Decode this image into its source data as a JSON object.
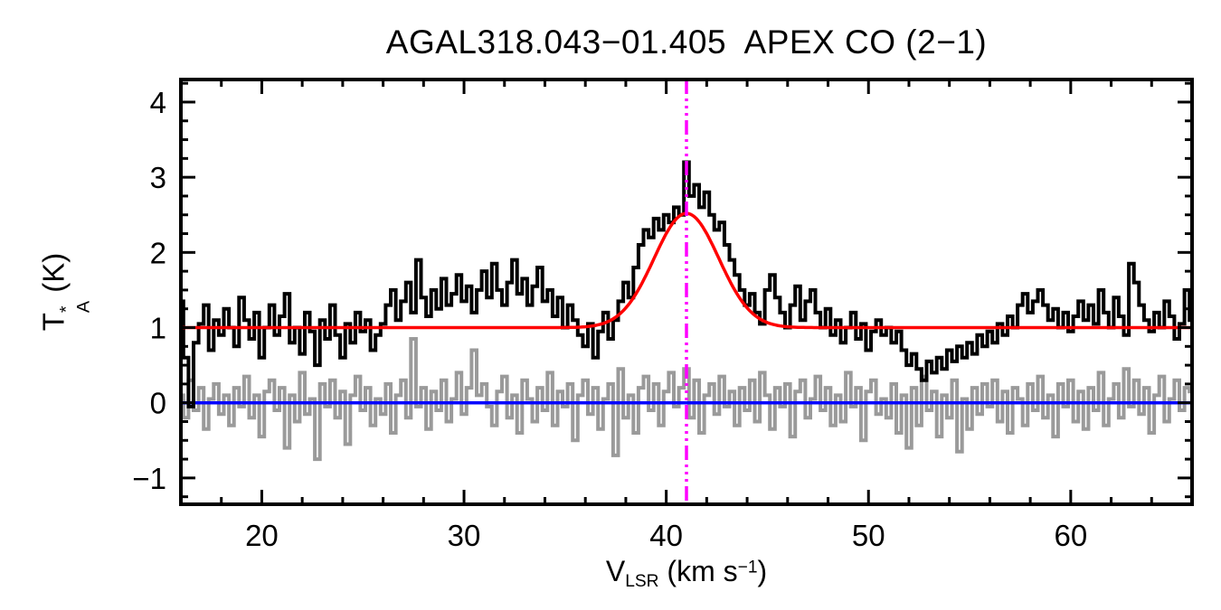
{
  "title": "AGAL318.043−01.405  APEX CO (2−1)",
  "labels": {
    "x": {
      "prefix": "V",
      "sub": "LSR",
      "mid": " (km s",
      "sup": "−1",
      "suffix": ")"
    },
    "y": {
      "prefix": "T",
      "sup": "*",
      "sub": "A",
      "suffix": " (K)"
    }
  },
  "chart_data": {
    "type": "line",
    "title": "AGAL318.043−01.405  APEX CO (2−1)",
    "xlabel": "V_LSR (km s^-1)",
    "ylabel": "T*_A (K)",
    "xlim": [
      16,
      66
    ],
    "ylim": [
      -1.35,
      4.3
    ],
    "xticks": [
      20,
      30,
      40,
      50,
      60
    ],
    "yticks": [
      -1,
      0,
      1,
      2,
      3,
      4
    ],
    "xtick_labels": [
      "20",
      "30",
      "40",
      "50",
      "60"
    ],
    "ytick_labels": [
      "−1",
      "0",
      "1",
      "2",
      "3",
      "4"
    ],
    "x_minor_step": 2,
    "y_minor_step": 0.25,
    "grid": false,
    "legend": "none",
    "x_start": 16.0,
    "x_step": 0.25,
    "series": [
      {
        "name": "co_spectrum",
        "style": "histogram",
        "color": "#000000",
        "width": 4,
        "values": [
          1.35,
          0.6,
          -0.05,
          0.8,
          1.05,
          1.3,
          0.7,
          1.1,
          0.9,
          1.25,
          1.0,
          0.75,
          1.4,
          1.1,
          0.85,
          1.2,
          0.6,
          1.0,
          1.3,
          0.9,
          1.15,
          1.45,
          0.8,
          1.0,
          0.65,
          1.2,
          0.95,
          0.5,
          1.1,
          0.85,
          1.3,
          0.9,
          0.6,
          1.05,
          0.8,
          1.2,
          0.95,
          1.1,
          0.7,
          0.9,
          1.05,
          1.3,
          1.5,
          1.1,
          1.35,
          1.6,
          1.2,
          1.9,
          1.4,
          1.15,
          1.5,
          1.25,
          1.65,
          1.3,
          1.45,
          1.7,
          1.35,
          1.55,
          1.2,
          1.5,
          1.75,
          1.4,
          1.85,
          1.5,
          1.3,
          1.6,
          1.9,
          1.45,
          1.65,
          1.3,
          1.55,
          1.8,
          1.35,
          1.5,
          1.15,
          1.4,
          1.0,
          1.3,
          1.1,
          0.9,
          0.75,
          1.05,
          0.6,
          0.95,
          1.2,
          0.85,
          1.1,
          1.35,
          1.6,
          1.4,
          1.8,
          2.1,
          2.3,
          2.2,
          2.45,
          2.3,
          2.5,
          2.4,
          2.6,
          2.5,
          3.2,
          2.75,
          2.9,
          2.6,
          2.8,
          2.5,
          2.3,
          2.4,
          2.1,
          1.9,
          1.7,
          1.5,
          1.3,
          1.45,
          1.2,
          1.05,
          1.5,
          1.7,
          1.4,
          1.2,
          1.0,
          1.3,
          1.55,
          1.1,
          1.35,
          1.5,
          1.2,
          1.0,
          1.25,
          0.9,
          1.1,
          0.8,
          1.0,
          1.2,
          0.85,
          1.05,
          0.7,
          0.95,
          1.1,
          0.9,
          1.0,
          0.8,
          0.95,
          0.7,
          0.5,
          0.65,
          0.45,
          0.3,
          0.55,
          0.4,
          0.6,
          0.45,
          0.7,
          0.55,
          0.75,
          0.6,
          0.8,
          0.65,
          0.9,
          0.75,
          0.95,
          0.8,
          1.05,
          0.9,
          1.15,
          1.0,
          1.3,
          1.45,
          1.2,
          1.35,
          1.5,
          1.3,
          1.1,
          1.25,
          1.0,
          1.2,
          0.95,
          1.15,
          1.35,
          1.1,
          1.3,
          1.05,
          1.5,
          1.2,
          1.0,
          1.4,
          1.15,
          0.9,
          1.85,
          1.6,
          1.3,
          1.1,
          0.95,
          1.2,
          1.0,
          1.35,
          1.15,
          0.85,
          1.05,
          1.5,
          1.1
        ]
      },
      {
        "name": "residual_spectrum",
        "style": "histogram",
        "color": "#9a9a9a",
        "width": 4,
        "values": [
          0.1,
          -0.2,
          0.3,
          -0.1,
          0.2,
          -0.35,
          0.05,
          0.25,
          -0.15,
          0.1,
          -0.3,
          0.2,
          -0.05,
          0.35,
          -0.2,
          0.1,
          -0.45,
          0.15,
          0.3,
          -0.1,
          0.2,
          -0.6,
          0.1,
          -0.25,
          0.4,
          -0.15,
          0.05,
          -0.75,
          0.25,
          -0.05,
          0.3,
          -0.2,
          0.15,
          -0.55,
          0.1,
          0.35,
          -0.1,
          0.2,
          -0.3,
          0.05,
          -0.15,
          0.25,
          -0.4,
          0.1,
          0.3,
          -0.2,
          0.85,
          -0.05,
          0.2,
          -0.35,
          0.15,
          -0.1,
          0.3,
          -0.25,
          0.05,
          0.4,
          -0.15,
          0.2,
          0.7,
          0.1,
          0.25,
          -0.05,
          -0.3,
          0.15,
          0.35,
          -0.2,
          0.1,
          -0.4,
          0.3,
          0.05,
          -0.25,
          0.2,
          -0.1,
          0.4,
          -0.3,
          0.15,
          -0.05,
          0.25,
          -0.5,
          0.1,
          0.3,
          -0.15,
          0.2,
          -0.35,
          0.05,
          0.25,
          -0.7,
          0.45,
          -0.2,
          0.1,
          -0.4,
          0.2,
          0.35,
          -0.1,
          0.25,
          -0.3,
          0.15,
          0.4,
          -0.05,
          0.2,
          0.45,
          -0.2,
          0.3,
          -0.4,
          0.1,
          0.25,
          -0.15,
          0.35,
          -0.05,
          0.15,
          -0.3,
          0.2,
          -0.1,
          0.3,
          -0.25,
          0.4,
          0.1,
          -0.35,
          0.2,
          -0.05,
          0.25,
          -0.45,
          0.15,
          0.3,
          -0.2,
          0.05,
          0.35,
          -0.1,
          0.2,
          -0.3,
          0.1,
          -0.25,
          0.4,
          -0.05,
          0.2,
          -0.5,
          0.15,
          0.3,
          -0.15,
          0.05,
          -0.2,
          0.25,
          -0.4,
          0.1,
          -0.6,
          0.2,
          -0.3,
          0.35,
          -0.1,
          0.15,
          -0.45,
          0.1,
          -0.2,
          0.3,
          -0.65,
          0.05,
          -0.35,
          0.2,
          -0.15,
          0.25,
          -0.05,
          0.3,
          -0.25,
          0.15,
          -0.4,
          0.2,
          0.05,
          -0.3,
          0.25,
          -0.1,
          0.35,
          -0.2,
          0.1,
          -0.45,
          0.25,
          -0.05,
          0.3,
          -0.25,
          0.15,
          -0.35,
          0.2,
          -0.1,
          0.4,
          -0.3,
          0.05,
          0.25,
          -0.2,
          0.45,
          -0.05,
          0.3,
          -0.15,
          0.2,
          -0.4,
          0.1,
          0.35,
          -0.25,
          0.05,
          0.3,
          -0.1,
          0.2,
          0.15
        ]
      },
      {
        "name": "gaussian_fit",
        "style": "gaussian",
        "color": "#ff0000",
        "width": 3.5,
        "baseline": 1.0,
        "amplitude": 1.52,
        "center": 41.0,
        "sigma": 1.6
      },
      {
        "name": "zero_baseline",
        "style": "hline",
        "color": "#0000ff",
        "width": 3.5,
        "y": 0
      },
      {
        "name": "velocity_marker",
        "style": "vline",
        "color": "#ff00ff",
        "width": 3.5,
        "x": 41.0,
        "dash": "16 5 3 5 3 5 3 5"
      }
    ]
  }
}
